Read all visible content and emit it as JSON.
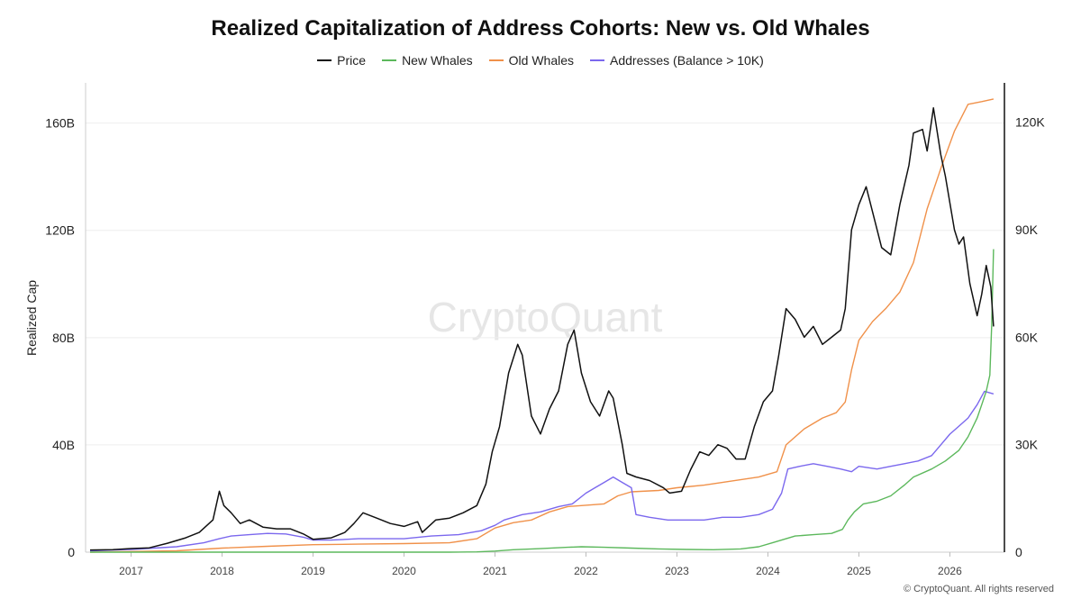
{
  "chart_data": {
    "type": "line",
    "title": "Realized Capitalization of Address Cohorts: New vs. Old Whales",
    "ylabel": "Realized Cap",
    "y2label": "",
    "ylim": [
      0,
      175
    ],
    "y2lim": [
      0,
      131
    ],
    "y_ticks": [
      "0",
      "40B",
      "80B",
      "120B",
      "160B"
    ],
    "y2_ticks": [
      "0",
      "30K",
      "60K",
      "90K",
      "120K"
    ],
    "x_ticks": [
      "2017",
      "2018",
      "2019",
      "2020",
      "2021",
      "2022",
      "2023",
      "2024",
      "2025",
      "2026"
    ],
    "xlim": [
      2016.5,
      2026.6
    ],
    "legend_position": "top-center",
    "grid": "horizontal",
    "watermark": "CryptoQuant",
    "copyright": "© CryptoQuant. All rights reserved",
    "series": [
      {
        "name": "Price",
        "axis": "right",
        "color": "#111111",
        "x": [
          2016.55,
          2016.8,
          2017.0,
          2017.2,
          2017.4,
          2017.6,
          2017.75,
          2017.9,
          2017.97,
          2018.02,
          2018.1,
          2018.2,
          2018.3,
          2018.45,
          2018.6,
          2018.75,
          2018.9,
          2019.0,
          2019.2,
          2019.35,
          2019.45,
          2019.55,
          2019.7,
          2019.85,
          2020.0,
          2020.15,
          2020.2,
          2020.35,
          2020.5,
          2020.65,
          2020.8,
          2020.9,
          2020.97,
          2021.05,
          2021.15,
          2021.25,
          2021.3,
          2021.4,
          2021.5,
          2021.6,
          2021.7,
          2021.8,
          2021.87,
          2021.95,
          2022.05,
          2022.15,
          2022.25,
          2022.3,
          2022.4,
          2022.45,
          2022.55,
          2022.7,
          2022.85,
          2022.92,
          2023.05,
          2023.15,
          2023.25,
          2023.35,
          2023.45,
          2023.55,
          2023.65,
          2023.75,
          2023.85,
          2023.95,
          2024.05,
          2024.12,
          2024.2,
          2024.3,
          2024.4,
          2024.5,
          2024.6,
          2024.7,
          2024.8,
          2024.85,
          2024.92,
          2025.0,
          2025.08,
          2025.15,
          2025.25,
          2025.35,
          2025.45,
          2025.55,
          2025.6,
          2025.7,
          2025.75,
          2025.82,
          2025.9,
          2025.95,
          2026.05,
          2026.1,
          2026.15,
          2026.22,
          2026.3,
          2026.35,
          2026.4,
          2026.45,
          2026.48
        ],
        "values": [
          0.6,
          0.7,
          1.0,
          1.2,
          2.5,
          4.0,
          5.5,
          9.0,
          17.0,
          13.0,
          11.0,
          8.0,
          9.0,
          7.0,
          6.5,
          6.5,
          5.0,
          3.6,
          4.0,
          5.5,
          8.0,
          11.0,
          9.5,
          8.0,
          7.2,
          8.5,
          5.5,
          9.0,
          9.5,
          11.0,
          13.0,
          19.0,
          28.0,
          35.0,
          50.0,
          58.0,
          55.0,
          38.0,
          33.0,
          40.0,
          45.0,
          58.0,
          62.0,
          50.0,
          42.0,
          38.0,
          45.0,
          43.0,
          30.0,
          22.0,
          21.0,
          20.0,
          18.0,
          16.5,
          17.0,
          23.0,
          28.0,
          27.0,
          30.0,
          29.0,
          26.0,
          26.0,
          35.0,
          42.0,
          45.0,
          55.0,
          68.0,
          65.0,
          60.0,
          63.0,
          58.0,
          60.0,
          62.0,
          68.0,
          90.0,
          97.0,
          102.0,
          95.0,
          85.0,
          83.0,
          97.0,
          108.0,
          117.0,
          118.0,
          112.0,
          124.0,
          111.0,
          105.0,
          90.0,
          86.0,
          88.0,
          75.0,
          66.0,
          72.0,
          80.0,
          74.0,
          63.0
        ]
      },
      {
        "name": "New Whales",
        "axis": "left",
        "color": "#5cb85c",
        "x": [
          2016.55,
          2020.5,
          2020.8,
          2021.0,
          2021.2,
          2021.5,
          2021.8,
          2021.95,
          2022.2,
          2022.5,
          2022.8,
          2023.1,
          2023.4,
          2023.7,
          2023.9,
          2024.05,
          2024.2,
          2024.3,
          2024.5,
          2024.7,
          2024.82,
          2024.88,
          2024.95,
          2025.05,
          2025.2,
          2025.35,
          2025.5,
          2025.6,
          2025.8,
          2025.95,
          2026.1,
          2026.2,
          2026.3,
          2026.35,
          2026.4,
          2026.44,
          2026.46,
          2026.48
        ],
        "values": [
          0,
          0,
          0.1,
          0.4,
          0.9,
          1.3,
          1.8,
          2.0,
          1.8,
          1.5,
          1.2,
          1.0,
          0.9,
          1.2,
          2.0,
          3.5,
          5.0,
          6.0,
          6.5,
          7.0,
          8.5,
          12.0,
          15.0,
          18.0,
          19.0,
          21.0,
          25.0,
          28.0,
          31.0,
          34.0,
          38.0,
          43.0,
          50.0,
          55.0,
          60.0,
          66.0,
          85.0,
          113.0
        ]
      },
      {
        "name": "Old Whales",
        "axis": "left",
        "color": "#f0914a",
        "x": [
          2016.55,
          2017.5,
          2018.0,
          2018.5,
          2019.0,
          2019.5,
          2020.0,
          2020.5,
          2020.8,
          2021.0,
          2021.2,
          2021.4,
          2021.6,
          2021.8,
          2022.0,
          2022.2,
          2022.35,
          2022.5,
          2022.8,
          2023.0,
          2023.3,
          2023.6,
          2023.9,
          2024.1,
          2024.2,
          2024.4,
          2024.6,
          2024.75,
          2024.85,
          2024.92,
          2025.0,
          2025.15,
          2025.3,
          2025.45,
          2025.6,
          2025.75,
          2025.9,
          2026.05,
          2026.2,
          2026.35,
          2026.48
        ],
        "values": [
          0,
          0.5,
          1.5,
          2.2,
          2.8,
          3.0,
          3.2,
          3.5,
          5.0,
          9.0,
          11.0,
          12.0,
          15.0,
          17.0,
          17.5,
          18.0,
          21.0,
          22.5,
          23.0,
          24.0,
          25.0,
          26.5,
          28.0,
          30.0,
          40.0,
          46.0,
          50.0,
          52.0,
          56.0,
          68.0,
          79.0,
          86.0,
          91.0,
          97.0,
          108.0,
          128.0,
          143.0,
          157.0,
          167.0,
          168.0,
          169.0
        ]
      },
      {
        "name": "Addresses (Balance > 10K)",
        "axis": "left",
        "color": "#7b68ee",
        "x": [
          2016.55,
          2017.0,
          2017.5,
          2017.8,
          2017.97,
          2018.1,
          2018.3,
          2018.5,
          2018.7,
          2018.9,
          2019.0,
          2019.2,
          2019.5,
          2019.8,
          2020.0,
          2020.3,
          2020.6,
          2020.85,
          2021.0,
          2021.1,
          2021.3,
          2021.5,
          2021.7,
          2021.85,
          2022.0,
          2022.1,
          2022.2,
          2022.3,
          2022.4,
          2022.5,
          2022.55,
          2022.7,
          2022.9,
          2023.1,
          2023.3,
          2023.5,
          2023.7,
          2023.9,
          2024.05,
          2024.15,
          2024.22,
          2024.35,
          2024.5,
          2024.65,
          2024.8,
          2024.92,
          2025.0,
          2025.2,
          2025.35,
          2025.5,
          2025.65,
          2025.8,
          2025.9,
          2026.0,
          2026.1,
          2026.2,
          2026.3,
          2026.38,
          2026.48
        ],
        "values": [
          0.5,
          1.0,
          2.0,
          3.5,
          5.0,
          6.0,
          6.5,
          7.0,
          6.8,
          5.5,
          4.5,
          4.5,
          5.0,
          5.0,
          5.0,
          6.0,
          6.5,
          8.0,
          10.0,
          12.0,
          14.0,
          15.0,
          17.0,
          18.0,
          22.0,
          24.0,
          26.0,
          28.0,
          26.0,
          24.0,
          14.0,
          13.0,
          12.0,
          12.0,
          12.0,
          13.0,
          13.0,
          14.0,
          16.0,
          22.0,
          31.0,
          32.0,
          33.0,
          32.0,
          31.0,
          30.0,
          32.0,
          31.0,
          32.0,
          33.0,
          34.0,
          36.0,
          40.0,
          44.0,
          47.0,
          50.0,
          55.0,
          60.0,
          59.0
        ]
      }
    ]
  }
}
